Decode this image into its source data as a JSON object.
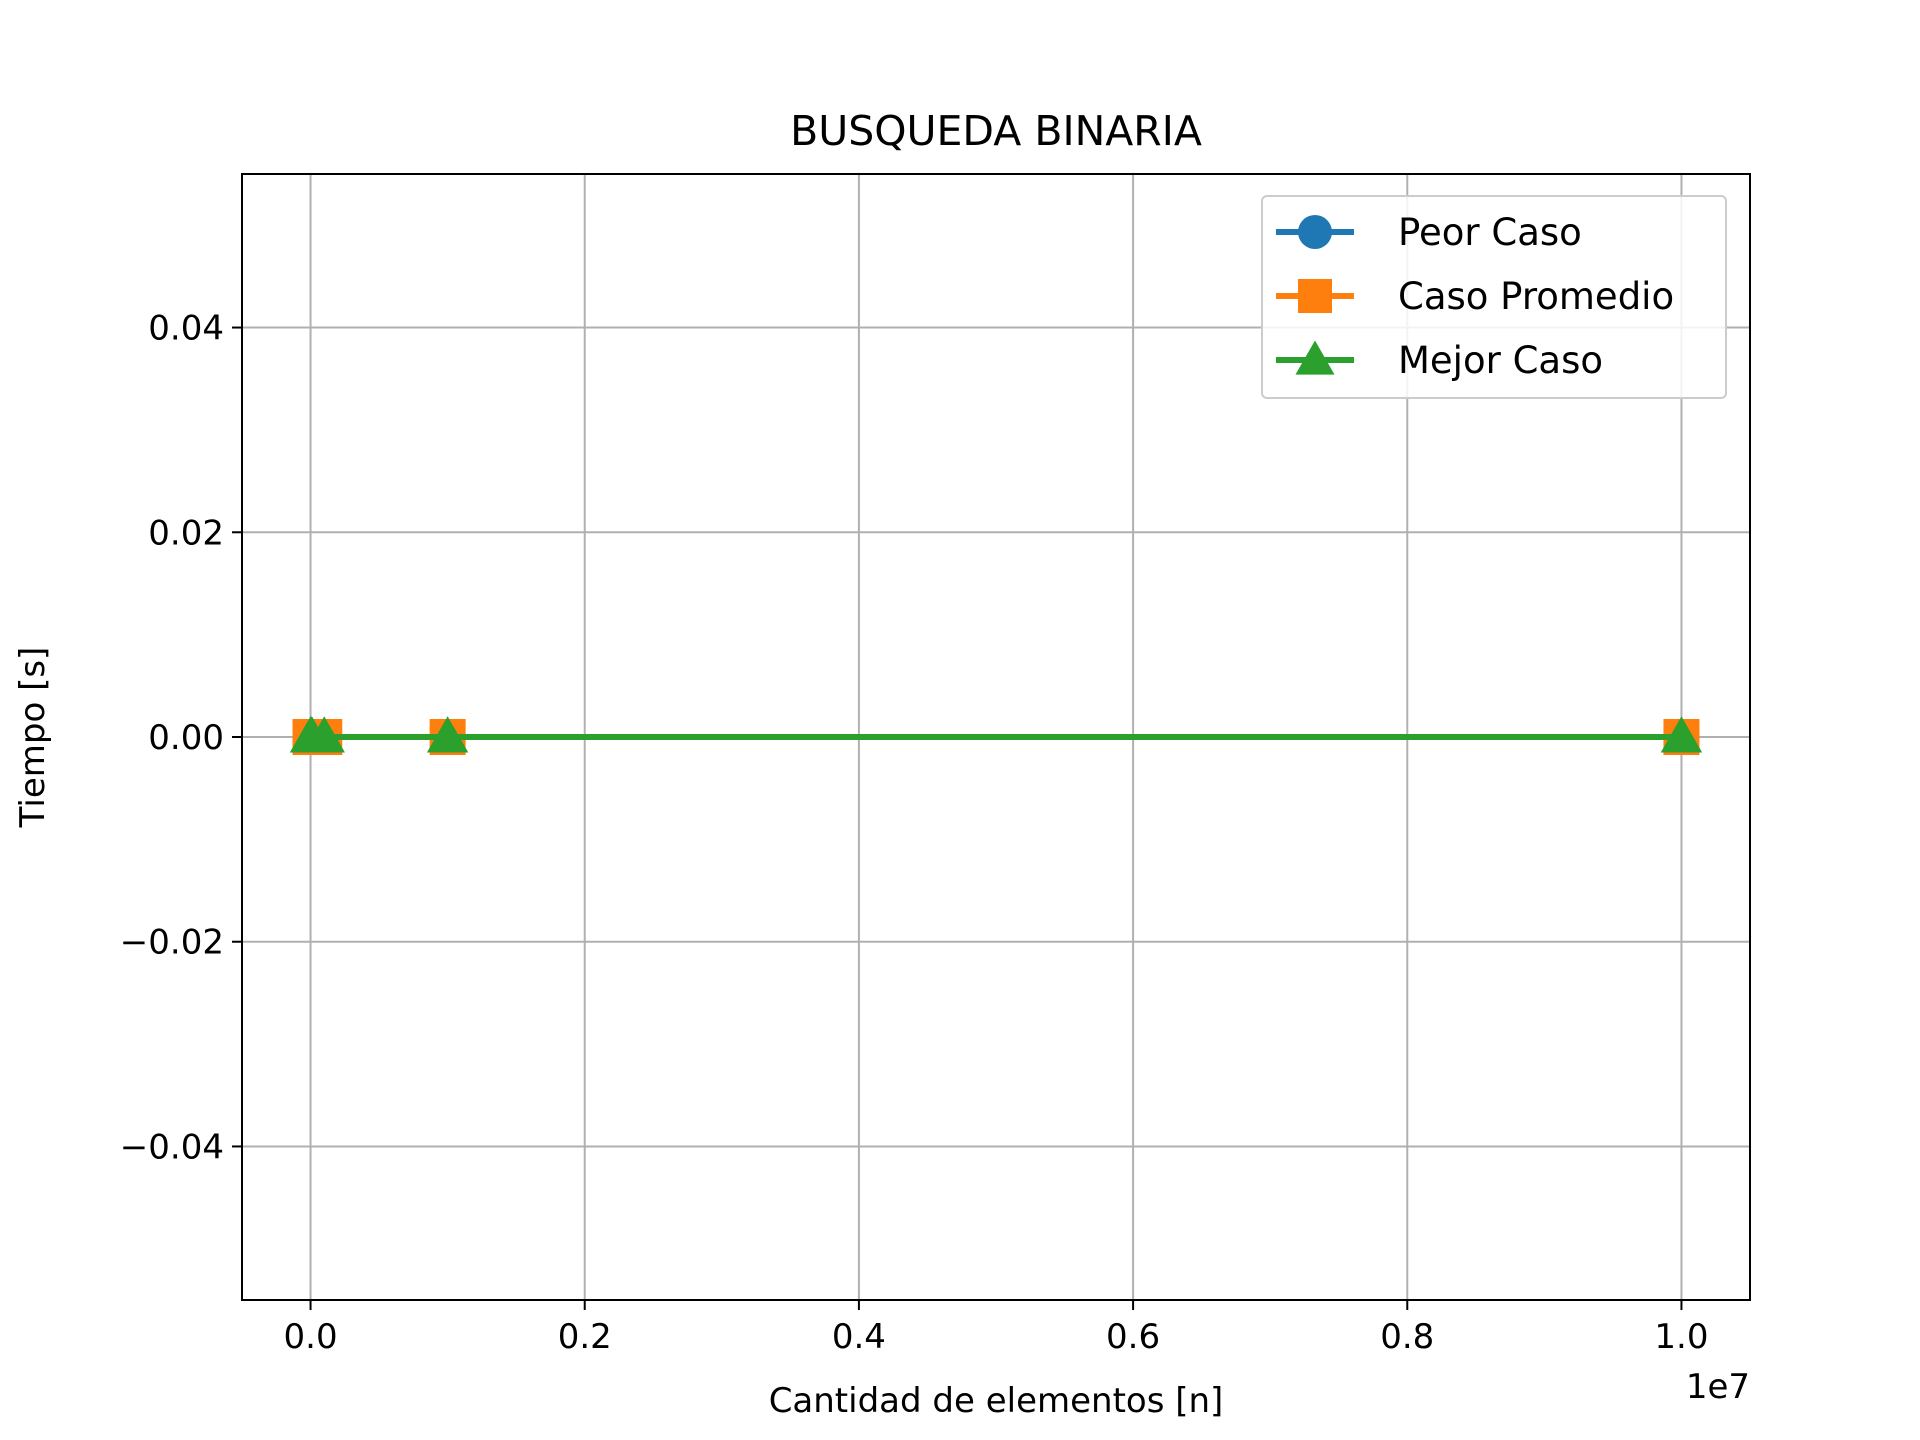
{
  "chart_data": {
    "type": "line",
    "title": "BUSQUEDA BINARIA",
    "xlabel": "Cantidad de elementos [n]",
    "ylabel": "Tiempo [s]",
    "x_offset_text": "1e7",
    "x_ticks": [
      0.0,
      2000000,
      4000000,
      6000000,
      8000000,
      10000000
    ],
    "x_tick_labels": [
      "0.0",
      "0.2",
      "0.4",
      "0.6",
      "0.8",
      "1.0"
    ],
    "y_ticks": [
      -0.04,
      -0.02,
      0.0,
      0.02,
      0.04
    ],
    "y_tick_labels": [
      "−0.04",
      "−0.02",
      "0.00",
      "0.02",
      "0.04"
    ],
    "xlim": [
      -500000,
      10500000
    ],
    "ylim": [
      -0.055,
      0.055
    ],
    "grid": true,
    "legend_position": "top-right",
    "x": [
      100,
      1000,
      10000,
      100000,
      1000000,
      10000000
    ],
    "series": [
      {
        "name": "Peor Caso",
        "marker": "circle",
        "color": "#1f77b4",
        "values": [
          0,
          0,
          0,
          0,
          0,
          0
        ]
      },
      {
        "name": "Caso Promedio",
        "marker": "square",
        "color": "#ff7f0e",
        "values": [
          0,
          0,
          0,
          0,
          0,
          0
        ]
      },
      {
        "name": "Mejor Caso",
        "marker": "triangle",
        "color": "#2ca02c",
        "values": [
          0,
          0,
          0,
          0,
          0,
          0
        ]
      }
    ]
  }
}
